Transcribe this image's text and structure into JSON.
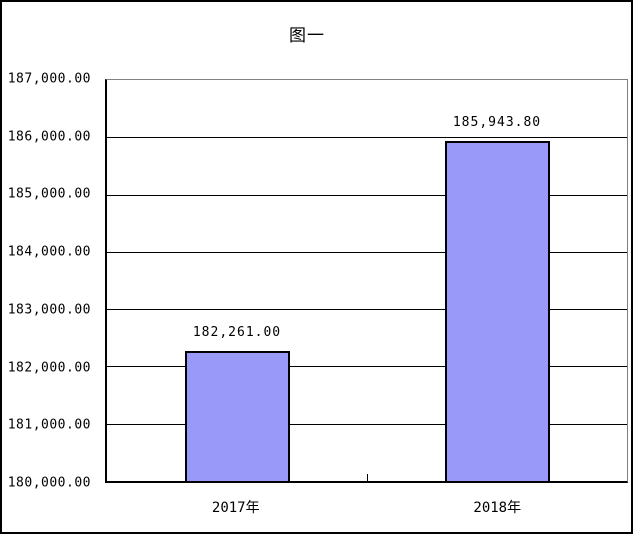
{
  "chart_data": {
    "type": "bar",
    "title": "图一",
    "categories": [
      "2017年",
      "2018年"
    ],
    "values": [
      182261.0,
      185943.8
    ],
    "value_labels": [
      "182,261.00",
      "185,943.80"
    ],
    "xlabel": "",
    "ylabel": "",
    "ylim": [
      180000,
      187000
    ],
    "ytick_interval": 1000,
    "ytick_labels": [
      "187,000.00",
      "186,000.00",
      "185,000.00",
      "184,000.00",
      "183,000.00",
      "182,000.00",
      "181,000.00",
      "180,000.00"
    ],
    "grid": true,
    "legend_position": "none",
    "bar_fill_color": "#9999FA",
    "bar_border_color": "#000000",
    "gridline_color": "#000000",
    "plot_border_color": "#808080",
    "axis_color": "#000000"
  }
}
